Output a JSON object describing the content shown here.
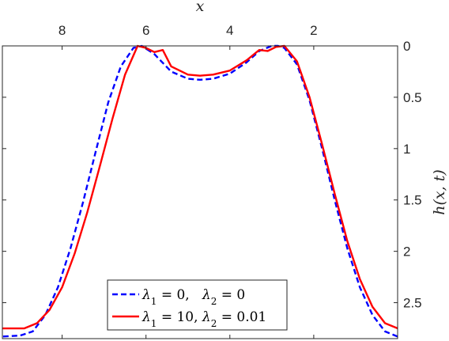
{
  "chart_data": {
    "type": "line",
    "xlabel": "x",
    "ylabel": "h(x, t)",
    "xlim": [
      0,
      9.4248
    ],
    "x_reversed": true,
    "ylim": [
      0,
      2.85
    ],
    "y_reversed": true,
    "y_axis_location": "right",
    "x_axis_location": "top",
    "xticks": [
      8,
      6,
      4,
      2
    ],
    "xtick_labels": [
      "8",
      "6",
      "4",
      "2"
    ],
    "yticks": [
      0,
      0.5,
      1,
      1.5,
      2,
      2.5
    ],
    "ytick_labels": [
      "0",
      "0.5",
      "1",
      "1.5",
      "2",
      "2.5"
    ],
    "grid": false,
    "legend_position": "bottom-center",
    "series": [
      {
        "name": "λ1 = 0,   λ2 = 0",
        "legend": {
          "lam1": "λ",
          "sub1": "1",
          "mid": " = 0,   ",
          "lam2": "λ",
          "sub2": "2",
          "end": " = 0"
        },
        "color": "#0000ff",
        "style": "dashed",
        "x": [
          0.0,
          0.3,
          0.6,
          0.9,
          1.2,
          1.5,
          1.8,
          2.1,
          2.4,
          2.7,
          2.85,
          3.0,
          3.3,
          3.6,
          4.0,
          4.4,
          4.71,
          5.0,
          5.4,
          5.8,
          6.1,
          6.3,
          6.6,
          6.9,
          7.2,
          7.5,
          7.8,
          8.1,
          8.4,
          8.7,
          9.0,
          9.4248
        ],
        "y": [
          2.83,
          2.78,
          2.62,
          2.35,
          1.97,
          1.5,
          1.0,
          0.53,
          0.18,
          0.02,
          0.0,
          0.0,
          0.05,
          0.16,
          0.27,
          0.32,
          0.33,
          0.32,
          0.25,
          0.08,
          0.0,
          0.02,
          0.2,
          0.55,
          1.03,
          1.52,
          1.97,
          2.35,
          2.62,
          2.78,
          2.82,
          2.83
        ]
      },
      {
        "name": "λ1 = 10, λ2 = 0.01",
        "legend": {
          "lam1": "λ",
          "sub1": "1",
          "mid": " = 10, ",
          "lam2": "λ",
          "sub2": "2",
          "end": " = 0.01"
        },
        "color": "#ff0000",
        "style": "solid",
        "x": [
          0.0,
          0.3,
          0.6,
          0.9,
          1.2,
          1.5,
          1.8,
          2.1,
          2.4,
          2.7,
          2.9,
          3.1,
          3.3,
          3.6,
          4.0,
          4.4,
          4.71,
          5.0,
          5.4,
          5.6,
          5.8,
          6.0,
          6.2,
          6.5,
          6.8,
          7.1,
          7.4,
          7.7,
          8.0,
          8.3,
          8.6,
          8.9,
          9.2,
          9.4248
        ],
        "y": [
          2.75,
          2.7,
          2.54,
          2.27,
          1.9,
          1.44,
          0.96,
          0.5,
          0.15,
          0.0,
          0.01,
          0.05,
          0.04,
          0.14,
          0.24,
          0.28,
          0.29,
          0.28,
          0.2,
          0.04,
          0.06,
          0.02,
          0.0,
          0.28,
          0.71,
          1.17,
          1.62,
          2.02,
          2.35,
          2.57,
          2.7,
          2.75,
          2.75,
          2.75
        ]
      }
    ]
  }
}
